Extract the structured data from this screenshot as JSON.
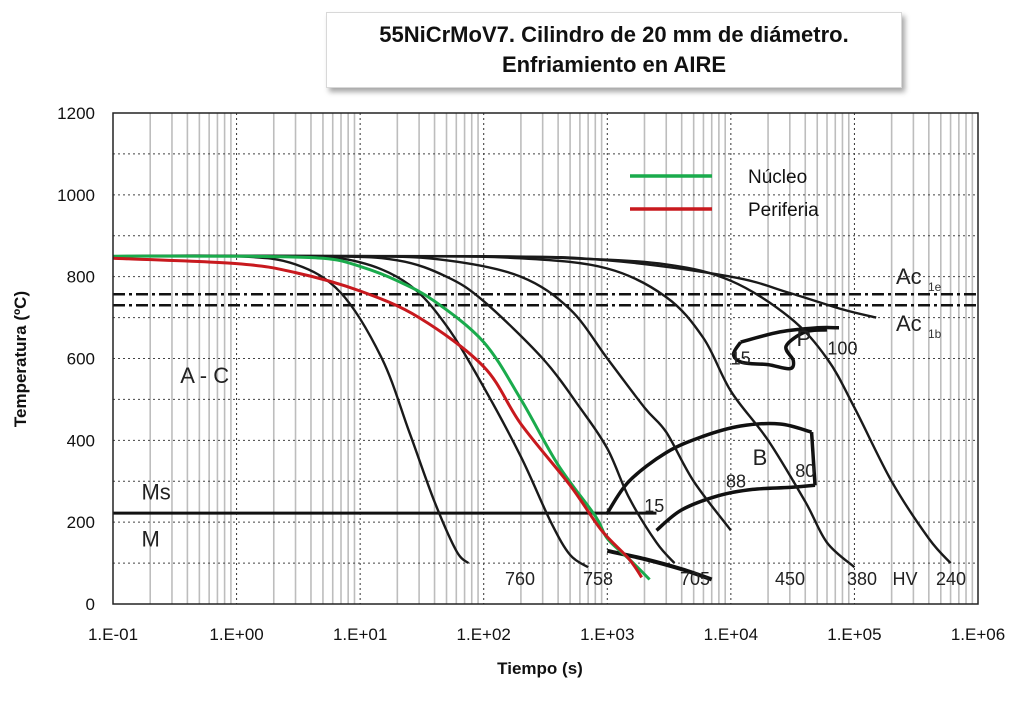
{
  "title": {
    "line1": "55NiCrMoV7. Cilindro de 20 mm de diámetro.",
    "line2": "Enfriamiento en AIRE"
  },
  "colors": {
    "nucleo": "#1aab4c",
    "periferia": "#c8191e",
    "ccurves": "#1a1a1a"
  },
  "chart_data": {
    "type": "line",
    "xlabel": "Tiempo (s)",
    "ylabel": "Temperatura (ºC)",
    "xscale": "log",
    "xlim": [
      0.1,
      1000000
    ],
    "ylim": [
      0,
      1200
    ],
    "xticks": [
      "1.E-01",
      "1.E+00",
      "1.E+01",
      "1.E+02",
      "1.E+03",
      "1.E+04",
      "1.E+05",
      "1.E+06"
    ],
    "yticks": [
      "0",
      "200",
      "400",
      "600",
      "800",
      "1000",
      "1200"
    ],
    "legend": {
      "position": "top-center",
      "entries": [
        "Núcleo",
        "Periferia"
      ]
    },
    "series": [
      {
        "name": "Núcleo",
        "color": "#1aab4c",
        "x": [
          0.1,
          1,
          5,
          10,
          20,
          40,
          100,
          200,
          400,
          800,
          1000,
          1500,
          2200
        ],
        "y": [
          850,
          850,
          845,
          825,
          790,
          740,
          640,
          500,
          340,
          215,
          160,
          110,
          60
        ]
      },
      {
        "name": "Periferia",
        "color": "#c8191e",
        "x": [
          0.1,
          1,
          3,
          10,
          30,
          100,
          200,
          500,
          900,
          1500,
          1900
        ],
        "y": [
          845,
          832,
          810,
          765,
          700,
          580,
          440,
          290,
          180,
          110,
          65
        ]
      }
    ],
    "cooling_curves": [
      {
        "label": "760",
        "x": [
          0.1,
          1,
          3,
          7,
          15,
          25,
          40,
          60,
          75
        ],
        "y": [
          850,
          850,
          830,
          760,
          600,
          420,
          250,
          130,
          100
        ]
      },
      {
        "label": "758",
        "x": [
          0.1,
          3,
          10,
          25,
          50,
          100,
          200,
          350,
          500,
          700
        ],
        "y": [
          850,
          850,
          835,
          780,
          680,
          530,
          360,
          200,
          120,
          90
        ]
      },
      {
        "label": "705",
        "x": [
          0.1,
          5,
          20,
          50,
          100,
          300,
          600,
          1000,
          1500,
          2500,
          3500
        ],
        "y": [
          850,
          850,
          840,
          800,
          740,
          600,
          480,
          380,
          260,
          150,
          100
        ]
      },
      {
        "label": "450",
        "x": [
          0.1,
          10,
          50,
          200,
          500,
          1000,
          2000,
          3000,
          5000,
          10000
        ],
        "y": [
          850,
          850,
          840,
          800,
          720,
          600,
          480,
          420,
          300,
          180
        ]
      },
      {
        "label": "380",
        "x": [
          0.1,
          20,
          200,
          1000,
          3000,
          6000,
          10000,
          20000,
          40000,
          60000,
          100000
        ],
        "y": [
          850,
          850,
          845,
          820,
          750,
          650,
          520,
          400,
          250,
          150,
          90
        ]
      },
      {
        "label": "240",
        "x": [
          0.1,
          50,
          500,
          3000,
          10000,
          30000,
          60000,
          100000,
          200000,
          400000,
          600000
        ],
        "y": [
          850,
          850,
          845,
          830,
          790,
          700,
          600,
          480,
          300,
          160,
          100
        ]
      },
      {
        "label": "",
        "x": [
          0.1,
          100,
          1000,
          10000,
          30000,
          80000,
          150000
        ],
        "y": [
          850,
          850,
          840,
          800,
          760,
          720,
          700
        ]
      }
    ],
    "critical_lines": [
      {
        "label": "Ac",
        "sub": "1e",
        "y": 757
      },
      {
        "label": "Ac",
        "sub": "1b",
        "y": 730
      }
    ],
    "ms_line": {
      "label": "Ms",
      "y": 222,
      "x_end": 2500
    },
    "regions": [
      {
        "label": "A - C",
        "x": 0.35,
        "y": 540
      },
      {
        "label": "P",
        "x": 34000,
        "y": 630
      },
      {
        "label": "B",
        "x": 15000,
        "y": 340
      },
      {
        "label": "M",
        "x": 0.17,
        "y": 140
      },
      {
        "label": "Ms",
        "x": 0.17,
        "y": 255
      }
    ],
    "phase_labels": [
      {
        "text": "15",
        "x": 12000,
        "y": 585
      },
      {
        "text": "100",
        "x": 80000,
        "y": 610
      },
      {
        "text": "88",
        "x": 11000,
        "y": 285
      },
      {
        "text": "80",
        "x": 40000,
        "y": 310
      },
      {
        "text": "15",
        "x": 2400,
        "y": 225
      }
    ],
    "hardness_labels": {
      "unit": "HV",
      "values": [
        "760",
        "758",
        "705",
        "450",
        "380",
        "240"
      ]
    }
  }
}
